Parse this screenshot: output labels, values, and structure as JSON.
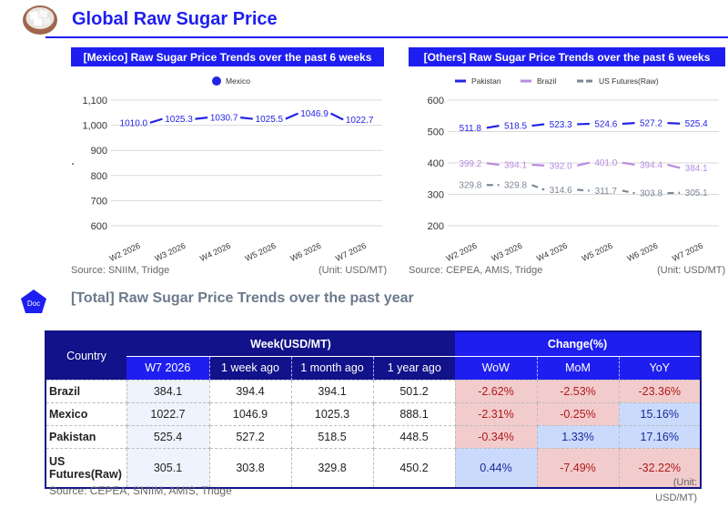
{
  "header": {
    "title": "Global Raw Sugar Price",
    "icon": "sugar-bowl-icon"
  },
  "chart_data": [
    {
      "type": "line",
      "title": "[Mexico] Raw Sugar Price Trends over the past 6 weeks",
      "categories": [
        "W2 2026",
        "W3 2026",
        "W4 2026",
        "W5 2026",
        "W6 2026",
        "W7 2026"
      ],
      "series": [
        {
          "name": "Mexico",
          "values": [
            1010.0,
            1025.3,
            1030.7,
            1025.5,
            1046.9,
            1022.7
          ],
          "color": "#2424e6",
          "style": "solid",
          "labels": [
            "1010.0",
            "1025.3",
            "1030.7",
            "1025.5",
            "1046.9",
            "1022.7"
          ]
        }
      ],
      "yticks": [
        600,
        700,
        800,
        900,
        1000,
        1100
      ],
      "ytick_labels": [
        "600",
        "700",
        "800",
        "900",
        "1,000",
        "1,100"
      ],
      "ylim": [
        600,
        1100
      ],
      "xlabel": "",
      "ylabel": "",
      "grid": true,
      "legend": "top",
      "source": "Source: SNIIM, Tridge",
      "unit": "(Unit: USD/MT)"
    },
    {
      "type": "line",
      "title": "[Others] Raw Sugar Price Trends over the past 6 weeks",
      "categories": [
        "W2 2026",
        "W3 2026",
        "W4 2026",
        "W5 2026",
        "W6 2026",
        "W7 2026"
      ],
      "series": [
        {
          "name": "Pakistan",
          "values": [
            511.8,
            518.5,
            523.3,
            524.6,
            527.2,
            525.4
          ],
          "color": "#2424e6",
          "style": "solid",
          "labels": [
            "511.8",
            "518.5",
            "523.3",
            "524.6",
            "527.2",
            "525.4"
          ]
        },
        {
          "name": "Brazil",
          "values": [
            399.2,
            394.1,
            392.0,
            401.0,
            394.4,
            384.1
          ],
          "color": "#b98be0",
          "style": "solid",
          "labels": [
            "399.2",
            "394.1",
            "392.0",
            "401.0",
            "394.4",
            "384.1"
          ]
        },
        {
          "name": "US Futures(Raw)",
          "values": [
            329.8,
            329.8,
            314.6,
            311.7,
            303.8,
            305.1
          ],
          "color": "#7c8796",
          "style": "dashed",
          "labels": [
            "329.8",
            "329.8",
            "314.6",
            "311.7",
            "303.8",
            "305.1"
          ]
        }
      ],
      "yticks": [
        200,
        300,
        400,
        500,
        600
      ],
      "ytick_labels": [
        "200",
        "300",
        "400",
        "500",
        "600"
      ],
      "ylim": [
        200,
        600
      ],
      "xlabel": "",
      "ylabel": "",
      "grid": true,
      "legend": "top",
      "source": "Source: CEPEA, AMIS, Tridge",
      "unit": "(Unit: USD/MT)"
    }
  ],
  "section": {
    "badge": "Doc",
    "title": "[Total] Raw Sugar Price Trends over the past year"
  },
  "table": {
    "country_header": "Country",
    "week_group_header": "Week(USD/MT)",
    "change_group_header": "Change(%)",
    "week_columns": [
      "W7 2026",
      "1 week ago",
      "1 month ago",
      "1 year ago"
    ],
    "change_columns": [
      "WoW",
      "MoM",
      "YoY"
    ],
    "rows": [
      {
        "country": "Brazil",
        "values": [
          "384.1",
          "394.4",
          "394.1",
          "501.2"
        ],
        "changes": [
          "-2.62%",
          "-2.53%",
          "-23.36%"
        ]
      },
      {
        "country": "Mexico",
        "values": [
          "1022.7",
          "1046.9",
          "1025.3",
          "888.1"
        ],
        "changes": [
          "-2.31%",
          "-0.25%",
          "15.16%"
        ]
      },
      {
        "country": "Pakistan",
        "values": [
          "525.4",
          "527.2",
          "518.5",
          "448.5"
        ],
        "changes": [
          "-0.34%",
          "1.33%",
          "17.16%"
        ]
      },
      {
        "country": "US Futures(Raw)",
        "values": [
          "305.1",
          "303.8",
          "329.8",
          "450.2"
        ],
        "changes": [
          "0.44%",
          "-7.49%",
          "-32.22%"
        ]
      }
    ],
    "source": "Source: CEPEA, SNIIM, AMIS, Tridge",
    "unit_line1": "(Unit:",
    "unit_line2": "USD/MT)"
  },
  "colors": {
    "accent": "#1e1ef0",
    "table_header_dark": "#12128a",
    "negative_bg": "#f2cccc",
    "negative_text": "#b01818",
    "positive_bg": "#c9dafc",
    "positive_text": "#1a2a9a"
  }
}
